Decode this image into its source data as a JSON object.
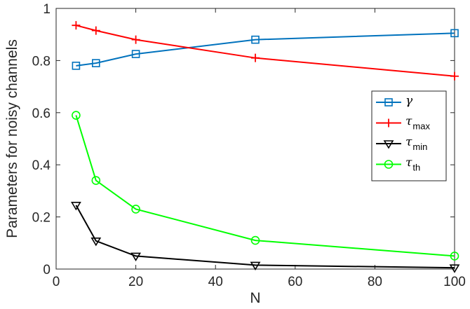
{
  "chart_data": {
    "type": "line",
    "title": "",
    "xlabel": "N",
    "ylabel": "Parameters for noisy channels",
    "xlim": [
      0,
      100
    ],
    "ylim": [
      0,
      1
    ],
    "xticks": [
      0,
      20,
      40,
      60,
      80,
      100
    ],
    "yticks": [
      0,
      0.2,
      0.4,
      0.6,
      0.8,
      1
    ],
    "xtick_labels": [
      "0",
      "20",
      "40",
      "60",
      "80",
      "100"
    ],
    "ytick_labels": [
      "0",
      "0.2",
      "0.4",
      "0.6",
      "0.8",
      "1"
    ],
    "grid": false,
    "legend_position": "right",
    "x": [
      5,
      10,
      20,
      50,
      100
    ],
    "series": [
      {
        "name": "γ",
        "name_main": "γ",
        "name_sub": "",
        "color": "#0072BD",
        "marker": "square",
        "values": [
          0.78,
          0.79,
          0.825,
          0.88,
          0.905
        ]
      },
      {
        "name": "τmax",
        "name_main": "τ",
        "name_sub": "max",
        "color": "#FF0000",
        "marker": "plus",
        "values": [
          0.935,
          0.915,
          0.88,
          0.81,
          0.74
        ]
      },
      {
        "name": "τmin",
        "name_main": "τ",
        "name_sub": "min",
        "color": "#000000",
        "marker": "triangle-down",
        "values": [
          0.245,
          0.108,
          0.05,
          0.015,
          0.005
        ]
      },
      {
        "name": "τth",
        "name_main": "τ",
        "name_sub": "th",
        "color": "#00FF00",
        "marker": "circle",
        "values": [
          0.59,
          0.34,
          0.23,
          0.11,
          0.05
        ]
      }
    ]
  }
}
